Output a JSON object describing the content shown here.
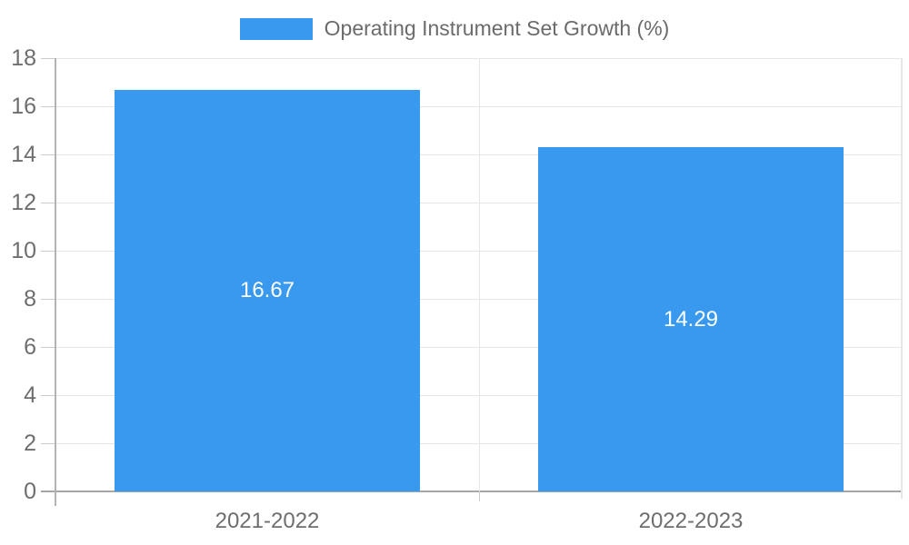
{
  "legend": {
    "label": "Operating Instrument Set Growth (%)",
    "swatch_color": "#3899EE"
  },
  "chart_data": {
    "type": "bar",
    "categories": [
      "2021-2022",
      "2022-2023"
    ],
    "series": [
      {
        "name": "Operating Instrument Set Growth (%)",
        "values": [
          16.67,
          14.29
        ]
      }
    ],
    "value_labels": [
      "16.67",
      "14.29"
    ],
    "title": "",
    "xlabel": "",
    "ylabel": "",
    "ylim": [
      0,
      18
    ],
    "yticks": [
      0,
      2,
      4,
      6,
      8,
      10,
      12,
      14,
      16,
      18
    ],
    "grid": true,
    "legend_position": "top-center",
    "bar_color": "#3899EE",
    "value_label_color": "#ffffff",
    "axis_text_color": "#6e6e6e",
    "gridline_color": "#e6e6e6",
    "zero_line_color": "#a6a6a6",
    "axis_line_color": "#b3b3b3"
  }
}
